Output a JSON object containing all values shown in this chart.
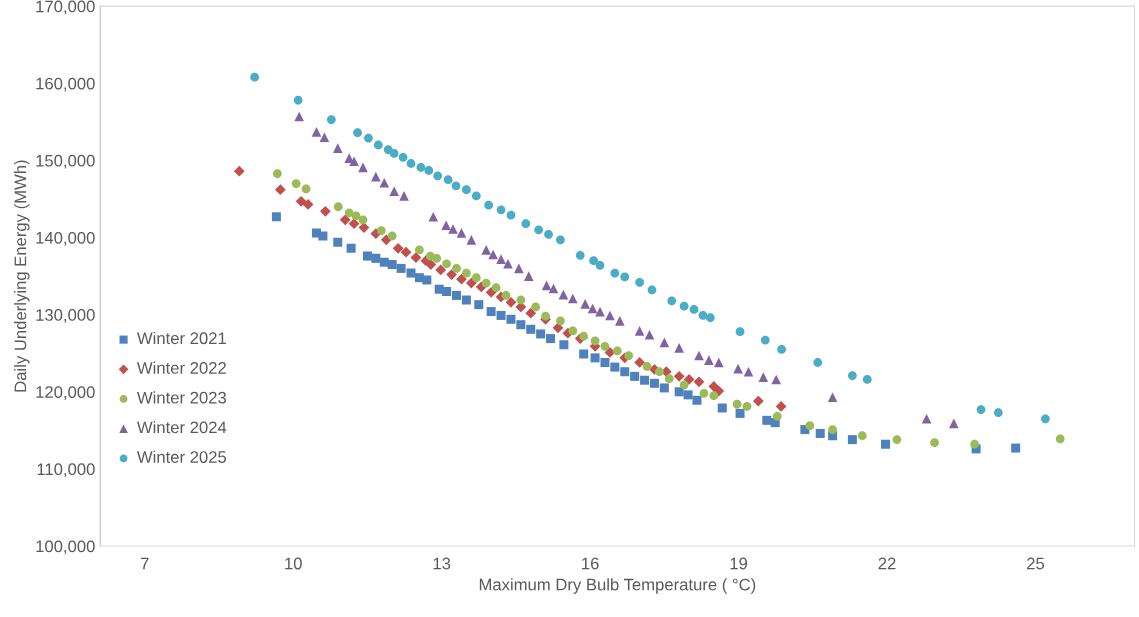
{
  "chart_data": {
    "type": "scatter",
    "xlabel": "Maximum Dry Bulb Temperature ( °C)",
    "ylabel": "Daily Underlying Energy (MWh)",
    "xlim": [
      6.1,
      27
    ],
    "xticks": [
      7,
      10,
      13,
      16,
      19,
      22,
      25
    ],
    "ylim": [
      100000,
      170000
    ],
    "yticks": [
      {
        "value": 100000,
        "label": "100,000"
      },
      {
        "value": 110000,
        "label": "110,000"
      },
      {
        "value": 120000,
        "label": "120,000"
      },
      {
        "value": 130000,
        "label": "130,000"
      },
      {
        "value": 140000,
        "label": "140,000"
      },
      {
        "value": 150000,
        "label": "150,000"
      },
      {
        "value": 160000,
        "label": "160,000"
      },
      {
        "value": 170000,
        "label": "170,000"
      }
    ],
    "grid": false,
    "legend": "lower left",
    "series": [
      {
        "name": "Winter 2021",
        "color": "#4f81bd",
        "marker": "square",
        "x": [
          9.66,
          10.47,
          10.6,
          10.9,
          11.17,
          11.5,
          11.67,
          11.84,
          12.0,
          12.18,
          12.38,
          12.55,
          12.7,
          12.95,
          13.1,
          13.3,
          13.5,
          13.75,
          14.0,
          14.2,
          14.4,
          14.6,
          14.8,
          15.0,
          15.2,
          15.47,
          15.87,
          16.1,
          16.3,
          16.5,
          16.7,
          16.9,
          17.1,
          17.3,
          17.5,
          17.8,
          17.98,
          18.16,
          18.67,
          19.03,
          19.57,
          19.74,
          20.34,
          20.65,
          20.9,
          21.3,
          21.97,
          23.8,
          24.6
        ],
        "values": [
          142700,
          140600,
          140200,
          139400,
          138600,
          137600,
          137300,
          136800,
          136500,
          136000,
          135400,
          134800,
          134500,
          133300,
          133000,
          132500,
          131900,
          131300,
          130400,
          129900,
          129400,
          128700,
          128100,
          127500,
          126900,
          126100,
          124900,
          124400,
          123800,
          123200,
          122600,
          122000,
          121500,
          121100,
          120500,
          120000,
          119600,
          118900,
          117900,
          117200,
          116300,
          116000,
          115100,
          114600,
          114300,
          113800,
          113200,
          112600,
          112700
        ]
      },
      {
        "name": "Winter 2022",
        "color": "#c0504d",
        "marker": "diamond",
        "x": [
          8.91,
          9.74,
          10.16,
          10.3,
          10.65,
          11.05,
          11.23,
          11.43,
          11.67,
          11.88,
          12.12,
          12.28,
          12.48,
          12.68,
          12.78,
          12.98,
          13.2,
          13.4,
          13.6,
          13.8,
          14.0,
          14.2,
          14.4,
          14.6,
          14.8,
          15.1,
          15.35,
          15.55,
          15.8,
          16.1,
          16.4,
          16.7,
          17.0,
          17.3,
          17.54,
          17.8,
          18.0,
          18.2,
          18.5,
          18.6,
          19.4,
          19.86
        ],
        "values": [
          148600,
          146200,
          144700,
          144300,
          143400,
          142300,
          141800,
          141300,
          140500,
          139700,
          138600,
          138100,
          137400,
          137000,
          136500,
          135800,
          135200,
          134600,
          134100,
          133600,
          132900,
          132300,
          131600,
          131000,
          130200,
          129400,
          128300,
          127600,
          126900,
          125900,
          125100,
          124400,
          123800,
          122900,
          122600,
          122000,
          121600,
          121300,
          120700,
          120100,
          118800,
          118100
        ]
      },
      {
        "name": "Winter 2023",
        "color": "#9bbb59",
        "marker": "circle",
        "x": [
          9.68,
          10.06,
          10.26,
          10.91,
          11.13,
          11.27,
          11.41,
          11.78,
          12.0,
          12.55,
          12.77,
          12.9,
          13.1,
          13.3,
          13.5,
          13.7,
          13.9,
          14.1,
          14.3,
          14.6,
          14.9,
          15.1,
          15.4,
          15.65,
          15.87,
          16.1,
          16.3,
          16.55,
          16.78,
          17.15,
          17.4,
          17.6,
          17.9,
          18.3,
          18.5,
          18.97,
          19.17,
          19.78,
          20.44,
          20.9,
          21.5,
          22.2,
          22.96,
          23.77,
          25.5
        ],
        "values": [
          148300,
          147000,
          146300,
          144000,
          143200,
          142800,
          142300,
          140900,
          140200,
          138400,
          137600,
          137300,
          136600,
          136000,
          135400,
          134800,
          134100,
          133500,
          132500,
          131900,
          131000,
          129800,
          129200,
          127900,
          127200,
          126600,
          125900,
          125300,
          124700,
          123300,
          122600,
          121700,
          120900,
          119800,
          119500,
          118400,
          118100,
          116800,
          115600,
          115100,
          114300,
          113800,
          113400,
          113200,
          113900
        ]
      },
      {
        "name": "Winter 2024",
        "color": "#8064a2",
        "marker": "triangle",
        "x": [
          10.12,
          10.47,
          10.63,
          10.9,
          11.13,
          11.23,
          11.41,
          11.67,
          11.84,
          12.04,
          12.24,
          12.83,
          13.09,
          13.23,
          13.4,
          13.6,
          13.9,
          14.04,
          14.2,
          14.34,
          14.56,
          14.76,
          15.12,
          15.26,
          15.46,
          15.65,
          15.9,
          16.05,
          16.2,
          16.4,
          16.6,
          17.0,
          17.2,
          17.5,
          17.8,
          18.2,
          18.4,
          18.6,
          18.99,
          19.2,
          19.5,
          19.76,
          20.9,
          22.8,
          23.35
        ],
        "values": [
          155700,
          153700,
          153000,
          151600,
          150300,
          149900,
          149100,
          147900,
          147100,
          146000,
          145400,
          142700,
          141600,
          141100,
          140600,
          139700,
          138400,
          137800,
          137200,
          136600,
          136000,
          135000,
          133800,
          133400,
          132600,
          132100,
          131400,
          130800,
          130400,
          129900,
          129200,
          127900,
          127400,
          126400,
          125700,
          124700,
          124100,
          123800,
          123000,
          122600,
          121900,
          121600,
          119300,
          116500,
          115900
        ]
      },
      {
        "name": "Winter 2025",
        "color": "#4bacc6",
        "marker": "circle",
        "x": [
          9.22,
          10.1,
          10.77,
          11.3,
          11.52,
          11.72,
          11.92,
          12.04,
          12.22,
          12.38,
          12.58,
          12.74,
          12.92,
          13.13,
          13.29,
          13.5,
          13.7,
          13.95,
          14.2,
          14.4,
          14.7,
          14.96,
          15.16,
          15.4,
          15.8,
          16.07,
          16.2,
          16.5,
          16.7,
          17.0,
          17.25,
          17.65,
          17.9,
          18.1,
          18.28,
          18.43,
          19.03,
          19.54,
          19.87,
          20.6,
          21.3,
          21.6,
          23.9,
          24.25,
          25.2
        ],
        "values": [
          160800,
          157800,
          155300,
          153600,
          152900,
          152000,
          151400,
          150900,
          150400,
          149600,
          149100,
          148700,
          148000,
          147500,
          146700,
          146200,
          145400,
          144200,
          143600,
          142900,
          141800,
          141000,
          140400,
          139700,
          137700,
          137000,
          136400,
          135400,
          134900,
          134200,
          133200,
          131800,
          131100,
          130700,
          129900,
          129600,
          127800,
          126700,
          125500,
          123800,
          122100,
          121600,
          117700,
          117300,
          116500
        ]
      }
    ]
  }
}
